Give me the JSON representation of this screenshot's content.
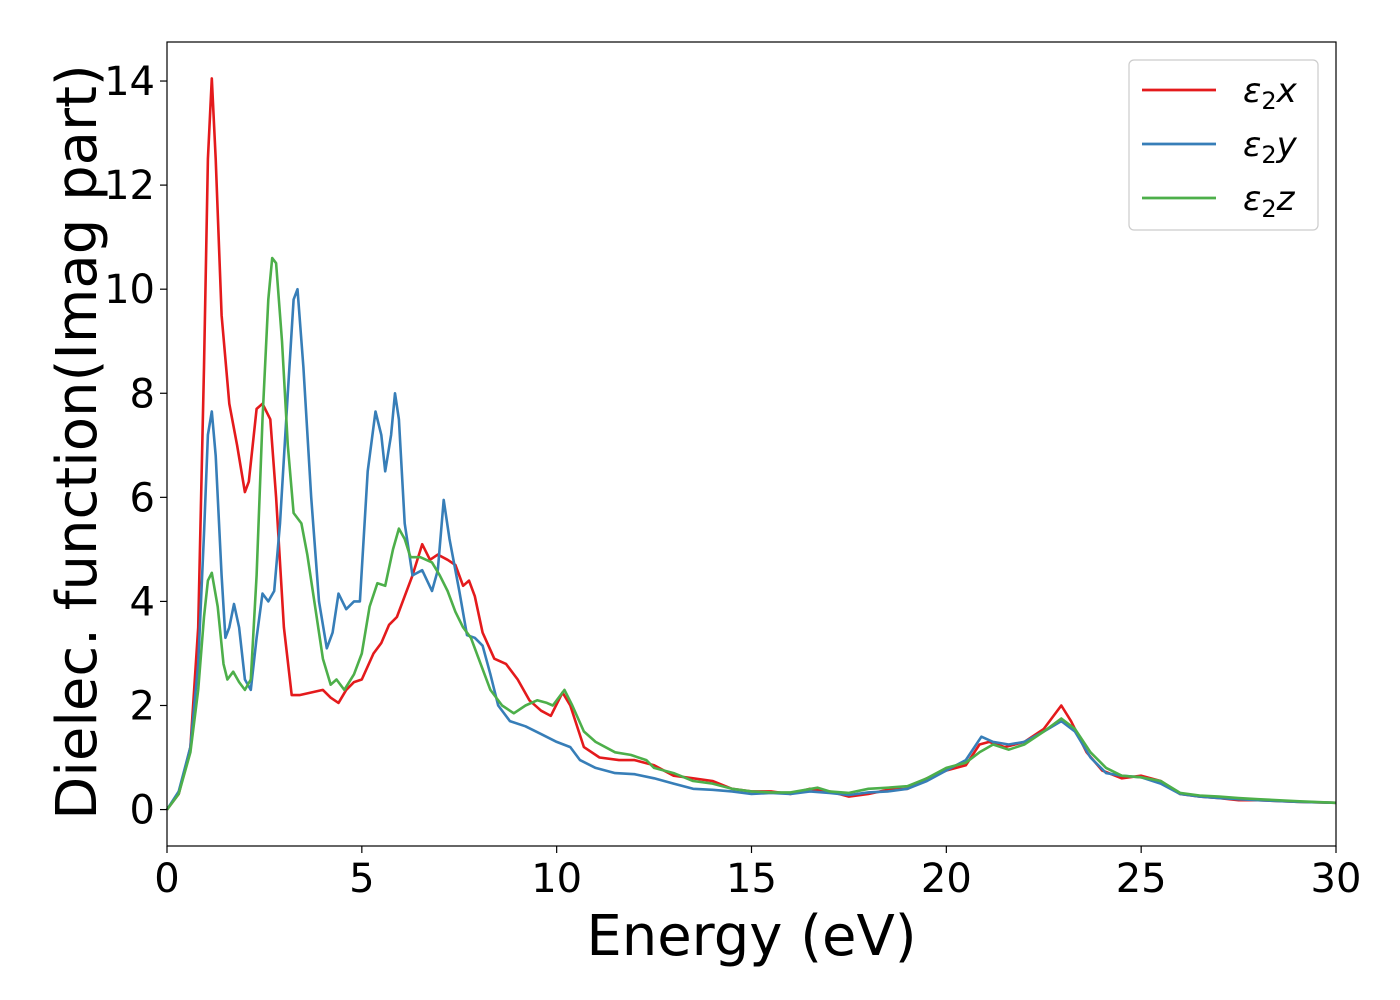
{
  "chart_data": {
    "type": "line",
    "xlabel": "Energy (eV)",
    "ylabel": "Dielec. function(Imag part)",
    "xlim": [
      0,
      30
    ],
    "ylim": [
      -0.7,
      14.75
    ],
    "xticks": [
      0,
      5,
      10,
      15,
      20,
      25,
      30
    ],
    "xtick_labels": [
      "0",
      "5",
      "10",
      "15",
      "20",
      "25",
      "30"
    ],
    "yticks": [
      0,
      2,
      4,
      6,
      8,
      10,
      12,
      14
    ],
    "ytick_labels": [
      "0",
      "2",
      "4",
      "6",
      "8",
      "10",
      "12",
      "14"
    ],
    "grid": false,
    "legend_position": "top-right",
    "series": [
      {
        "name": "ε2x",
        "legend": {
          "base": "ε",
          "sub": "2",
          "suffix": "x"
        },
        "color": "#e41a1c",
        "points": [
          [
            0,
            0
          ],
          [
            0.3,
            0.3
          ],
          [
            0.6,
            1.2
          ],
          [
            0.8,
            3.5
          ],
          [
            0.95,
            8.5
          ],
          [
            1.05,
            12.5
          ],
          [
            1.15,
            14.05
          ],
          [
            1.25,
            12.5
          ],
          [
            1.4,
            9.5
          ],
          [
            1.6,
            7.8
          ],
          [
            1.8,
            7.0
          ],
          [
            2.0,
            6.1
          ],
          [
            2.1,
            6.3
          ],
          [
            2.3,
            7.7
          ],
          [
            2.45,
            7.8
          ],
          [
            2.65,
            7.5
          ],
          [
            2.8,
            6.0
          ],
          [
            3.0,
            3.5
          ],
          [
            3.2,
            2.2
          ],
          [
            3.4,
            2.2
          ],
          [
            3.7,
            2.25
          ],
          [
            4.0,
            2.3
          ],
          [
            4.2,
            2.15
          ],
          [
            4.4,
            2.05
          ],
          [
            4.6,
            2.3
          ],
          [
            4.8,
            2.45
          ],
          [
            5.0,
            2.5
          ],
          [
            5.3,
            3.0
          ],
          [
            5.5,
            3.2
          ],
          [
            5.7,
            3.55
          ],
          [
            5.9,
            3.7
          ],
          [
            6.1,
            4.1
          ],
          [
            6.3,
            4.5
          ],
          [
            6.55,
            5.1
          ],
          [
            6.75,
            4.8
          ],
          [
            6.95,
            4.9
          ],
          [
            7.2,
            4.8
          ],
          [
            7.4,
            4.7
          ],
          [
            7.6,
            4.3
          ],
          [
            7.75,
            4.4
          ],
          [
            7.9,
            4.1
          ],
          [
            8.1,
            3.4
          ],
          [
            8.4,
            2.9
          ],
          [
            8.7,
            2.8
          ],
          [
            9.0,
            2.5
          ],
          [
            9.3,
            2.1
          ],
          [
            9.6,
            1.9
          ],
          [
            9.85,
            1.8
          ],
          [
            10.15,
            2.25
          ],
          [
            10.35,
            2.0
          ],
          [
            10.7,
            1.2
          ],
          [
            11.1,
            1.0
          ],
          [
            11.6,
            0.95
          ],
          [
            12.0,
            0.95
          ],
          [
            12.5,
            0.85
          ],
          [
            13.0,
            0.65
          ],
          [
            13.5,
            0.6
          ],
          [
            14.0,
            0.55
          ],
          [
            14.5,
            0.4
          ],
          [
            15.0,
            0.35
          ],
          [
            15.5,
            0.35
          ],
          [
            16.0,
            0.3
          ],
          [
            16.5,
            0.4
          ],
          [
            17.0,
            0.35
          ],
          [
            17.5,
            0.25
          ],
          [
            18.0,
            0.3
          ],
          [
            18.5,
            0.38
          ],
          [
            19.0,
            0.4
          ],
          [
            19.5,
            0.6
          ],
          [
            20.0,
            0.75
          ],
          [
            20.5,
            0.85
          ],
          [
            20.85,
            1.25
          ],
          [
            21.1,
            1.3
          ],
          [
            21.5,
            1.2
          ],
          [
            22.0,
            1.3
          ],
          [
            22.5,
            1.55
          ],
          [
            22.95,
            2.0
          ],
          [
            23.2,
            1.7
          ],
          [
            23.6,
            1.1
          ],
          [
            24.0,
            0.75
          ],
          [
            24.5,
            0.6
          ],
          [
            25.0,
            0.65
          ],
          [
            25.5,
            0.55
          ],
          [
            26.0,
            0.3
          ],
          [
            26.5,
            0.25
          ],
          [
            27.0,
            0.22
          ],
          [
            27.5,
            0.18
          ],
          [
            28.0,
            0.18
          ],
          [
            29.0,
            0.15
          ],
          [
            30.0,
            0.13
          ]
        ]
      },
      {
        "name": "ε2y",
        "legend": {
          "base": "ε",
          "sub": "2",
          "suffix": "y"
        },
        "color": "#377eb8",
        "points": [
          [
            0,
            0
          ],
          [
            0.3,
            0.35
          ],
          [
            0.6,
            1.2
          ],
          [
            0.8,
            2.8
          ],
          [
            0.95,
            5.3
          ],
          [
            1.05,
            7.2
          ],
          [
            1.15,
            7.65
          ],
          [
            1.25,
            6.8
          ],
          [
            1.4,
            4.5
          ],
          [
            1.5,
            3.3
          ],
          [
            1.6,
            3.5
          ],
          [
            1.72,
            3.95
          ],
          [
            1.85,
            3.5
          ],
          [
            2.0,
            2.5
          ],
          [
            2.15,
            2.3
          ],
          [
            2.3,
            3.3
          ],
          [
            2.45,
            4.15
          ],
          [
            2.6,
            4.0
          ],
          [
            2.75,
            4.2
          ],
          [
            2.9,
            5.5
          ],
          [
            3.1,
            8.0
          ],
          [
            3.25,
            9.8
          ],
          [
            3.35,
            10.0
          ],
          [
            3.5,
            8.5
          ],
          [
            3.7,
            6.0
          ],
          [
            3.9,
            4.0
          ],
          [
            4.1,
            3.1
          ],
          [
            4.25,
            3.4
          ],
          [
            4.4,
            4.15
          ],
          [
            4.6,
            3.85
          ],
          [
            4.8,
            4.0
          ],
          [
            4.95,
            4.0
          ],
          [
            5.15,
            6.5
          ],
          [
            5.35,
            7.65
          ],
          [
            5.5,
            7.2
          ],
          [
            5.6,
            6.5
          ],
          [
            5.75,
            7.2
          ],
          [
            5.85,
            8.0
          ],
          [
            5.95,
            7.5
          ],
          [
            6.1,
            5.5
          ],
          [
            6.3,
            4.5
          ],
          [
            6.55,
            4.6
          ],
          [
            6.8,
            4.2
          ],
          [
            6.95,
            4.6
          ],
          [
            7.1,
            5.95
          ],
          [
            7.25,
            5.2
          ],
          [
            7.5,
            4.2
          ],
          [
            7.7,
            3.35
          ],
          [
            7.9,
            3.3
          ],
          [
            8.1,
            3.15
          ],
          [
            8.3,
            2.6
          ],
          [
            8.5,
            2.0
          ],
          [
            8.8,
            1.7
          ],
          [
            9.2,
            1.6
          ],
          [
            9.6,
            1.45
          ],
          [
            10.0,
            1.3
          ],
          [
            10.35,
            1.2
          ],
          [
            10.6,
            0.95
          ],
          [
            11.0,
            0.8
          ],
          [
            11.5,
            0.7
          ],
          [
            12.0,
            0.68
          ],
          [
            12.5,
            0.6
          ],
          [
            13.0,
            0.5
          ],
          [
            13.5,
            0.4
          ],
          [
            14.0,
            0.38
          ],
          [
            14.5,
            0.35
          ],
          [
            15.0,
            0.3
          ],
          [
            15.5,
            0.32
          ],
          [
            16.0,
            0.3
          ],
          [
            16.5,
            0.35
          ],
          [
            17.0,
            0.32
          ],
          [
            17.5,
            0.28
          ],
          [
            18.0,
            0.33
          ],
          [
            18.5,
            0.35
          ],
          [
            19.0,
            0.4
          ],
          [
            19.5,
            0.55
          ],
          [
            20.0,
            0.75
          ],
          [
            20.5,
            0.95
          ],
          [
            20.9,
            1.4
          ],
          [
            21.2,
            1.3
          ],
          [
            21.6,
            1.25
          ],
          [
            22.0,
            1.3
          ],
          [
            22.5,
            1.5
          ],
          [
            22.95,
            1.7
          ],
          [
            23.3,
            1.5
          ],
          [
            23.7,
            1.0
          ],
          [
            24.1,
            0.7
          ],
          [
            24.5,
            0.65
          ],
          [
            25.0,
            0.62
          ],
          [
            25.5,
            0.5
          ],
          [
            26.0,
            0.3
          ],
          [
            26.5,
            0.25
          ],
          [
            27.0,
            0.22
          ],
          [
            27.5,
            0.2
          ],
          [
            28.0,
            0.18
          ],
          [
            29.0,
            0.15
          ],
          [
            30.0,
            0.13
          ]
        ]
      },
      {
        "name": "ε2z",
        "legend": {
          "base": "ε",
          "sub": "2",
          "suffix": "z"
        },
        "color": "#4daf4a",
        "points": [
          [
            0,
            0
          ],
          [
            0.3,
            0.3
          ],
          [
            0.6,
            1.1
          ],
          [
            0.8,
            2.3
          ],
          [
            0.95,
            3.7
          ],
          [
            1.05,
            4.4
          ],
          [
            1.15,
            4.55
          ],
          [
            1.3,
            3.9
          ],
          [
            1.45,
            2.8
          ],
          [
            1.55,
            2.5
          ],
          [
            1.7,
            2.65
          ],
          [
            1.85,
            2.45
          ],
          [
            2.0,
            2.3
          ],
          [
            2.15,
            2.5
          ],
          [
            2.3,
            4.5
          ],
          [
            2.45,
            7.5
          ],
          [
            2.6,
            9.8
          ],
          [
            2.7,
            10.6
          ],
          [
            2.8,
            10.5
          ],
          [
            2.95,
            9.0
          ],
          [
            3.1,
            7.0
          ],
          [
            3.25,
            5.7
          ],
          [
            3.45,
            5.5
          ],
          [
            3.6,
            4.9
          ],
          [
            3.8,
            3.9
          ],
          [
            4.0,
            2.9
          ],
          [
            4.2,
            2.4
          ],
          [
            4.35,
            2.5
          ],
          [
            4.55,
            2.3
          ],
          [
            4.8,
            2.6
          ],
          [
            5.0,
            3.0
          ],
          [
            5.2,
            3.9
          ],
          [
            5.4,
            4.35
          ],
          [
            5.6,
            4.3
          ],
          [
            5.8,
            5.0
          ],
          [
            5.95,
            5.4
          ],
          [
            6.1,
            5.2
          ],
          [
            6.25,
            4.85
          ],
          [
            6.5,
            4.85
          ],
          [
            6.8,
            4.75
          ],
          [
            7.0,
            4.5
          ],
          [
            7.2,
            4.2
          ],
          [
            7.4,
            3.8
          ],
          [
            7.6,
            3.5
          ],
          [
            7.8,
            3.3
          ],
          [
            8.0,
            2.9
          ],
          [
            8.3,
            2.3
          ],
          [
            8.6,
            2.0
          ],
          [
            8.9,
            1.85
          ],
          [
            9.2,
            2.0
          ],
          [
            9.5,
            2.1
          ],
          [
            9.75,
            2.05
          ],
          [
            9.9,
            2.0
          ],
          [
            10.2,
            2.3
          ],
          [
            10.4,
            2.0
          ],
          [
            10.7,
            1.5
          ],
          [
            11.0,
            1.3
          ],
          [
            11.5,
            1.1
          ],
          [
            11.9,
            1.05
          ],
          [
            12.3,
            0.95
          ],
          [
            12.5,
            0.8
          ],
          [
            13.0,
            0.7
          ],
          [
            13.5,
            0.55
          ],
          [
            14.0,
            0.5
          ],
          [
            14.5,
            0.4
          ],
          [
            15.0,
            0.35
          ],
          [
            15.5,
            0.33
          ],
          [
            16.0,
            0.33
          ],
          [
            16.7,
            0.42
          ],
          [
            17.0,
            0.35
          ],
          [
            17.5,
            0.32
          ],
          [
            18.0,
            0.4
          ],
          [
            18.5,
            0.42
          ],
          [
            19.0,
            0.45
          ],
          [
            19.5,
            0.6
          ],
          [
            20.0,
            0.8
          ],
          [
            20.5,
            0.9
          ],
          [
            20.85,
            1.1
          ],
          [
            21.2,
            1.25
          ],
          [
            21.6,
            1.15
          ],
          [
            22.0,
            1.25
          ],
          [
            22.5,
            1.5
          ],
          [
            22.95,
            1.75
          ],
          [
            23.3,
            1.55
          ],
          [
            23.7,
            1.1
          ],
          [
            24.1,
            0.8
          ],
          [
            24.5,
            0.65
          ],
          [
            25.0,
            0.62
          ],
          [
            25.5,
            0.55
          ],
          [
            26.0,
            0.32
          ],
          [
            26.5,
            0.27
          ],
          [
            27.0,
            0.25
          ],
          [
            27.5,
            0.22
          ],
          [
            28.0,
            0.2
          ],
          [
            29.0,
            0.16
          ],
          [
            30.0,
            0.13
          ]
        ]
      }
    ]
  }
}
